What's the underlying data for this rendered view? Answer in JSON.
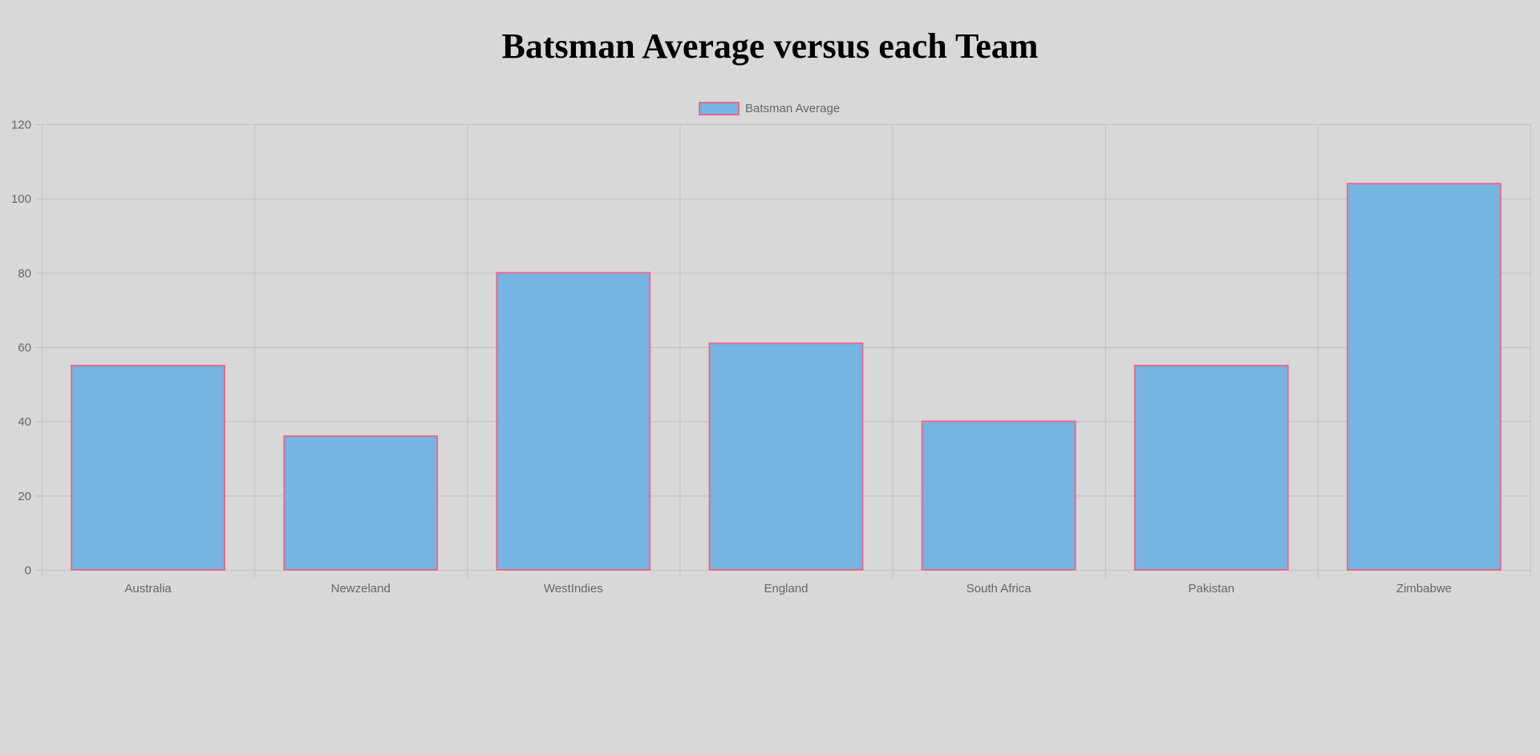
{
  "chart_data": {
    "type": "bar",
    "title": "Batsman Average versus each Team",
    "categories": [
      "Australia",
      "Newzeland",
      "WestIndies",
      "England",
      "South Africa",
      "Pakistan",
      "Zimbabwe"
    ],
    "series": [
      {
        "name": "Batsman Average",
        "values": [
          55,
          36,
          80,
          61,
          40,
          55,
          104
        ]
      }
    ],
    "ylim": [
      0,
      120
    ],
    "yticks": [
      0,
      20,
      40,
      60,
      80,
      100,
      120
    ],
    "grid": true,
    "legend_position": "top",
    "colors": {
      "bar_fill": "#74b5e2",
      "bar_stroke": "#e8698f",
      "grid": "#c0c0c0",
      "tick_text": "#666666"
    }
  }
}
